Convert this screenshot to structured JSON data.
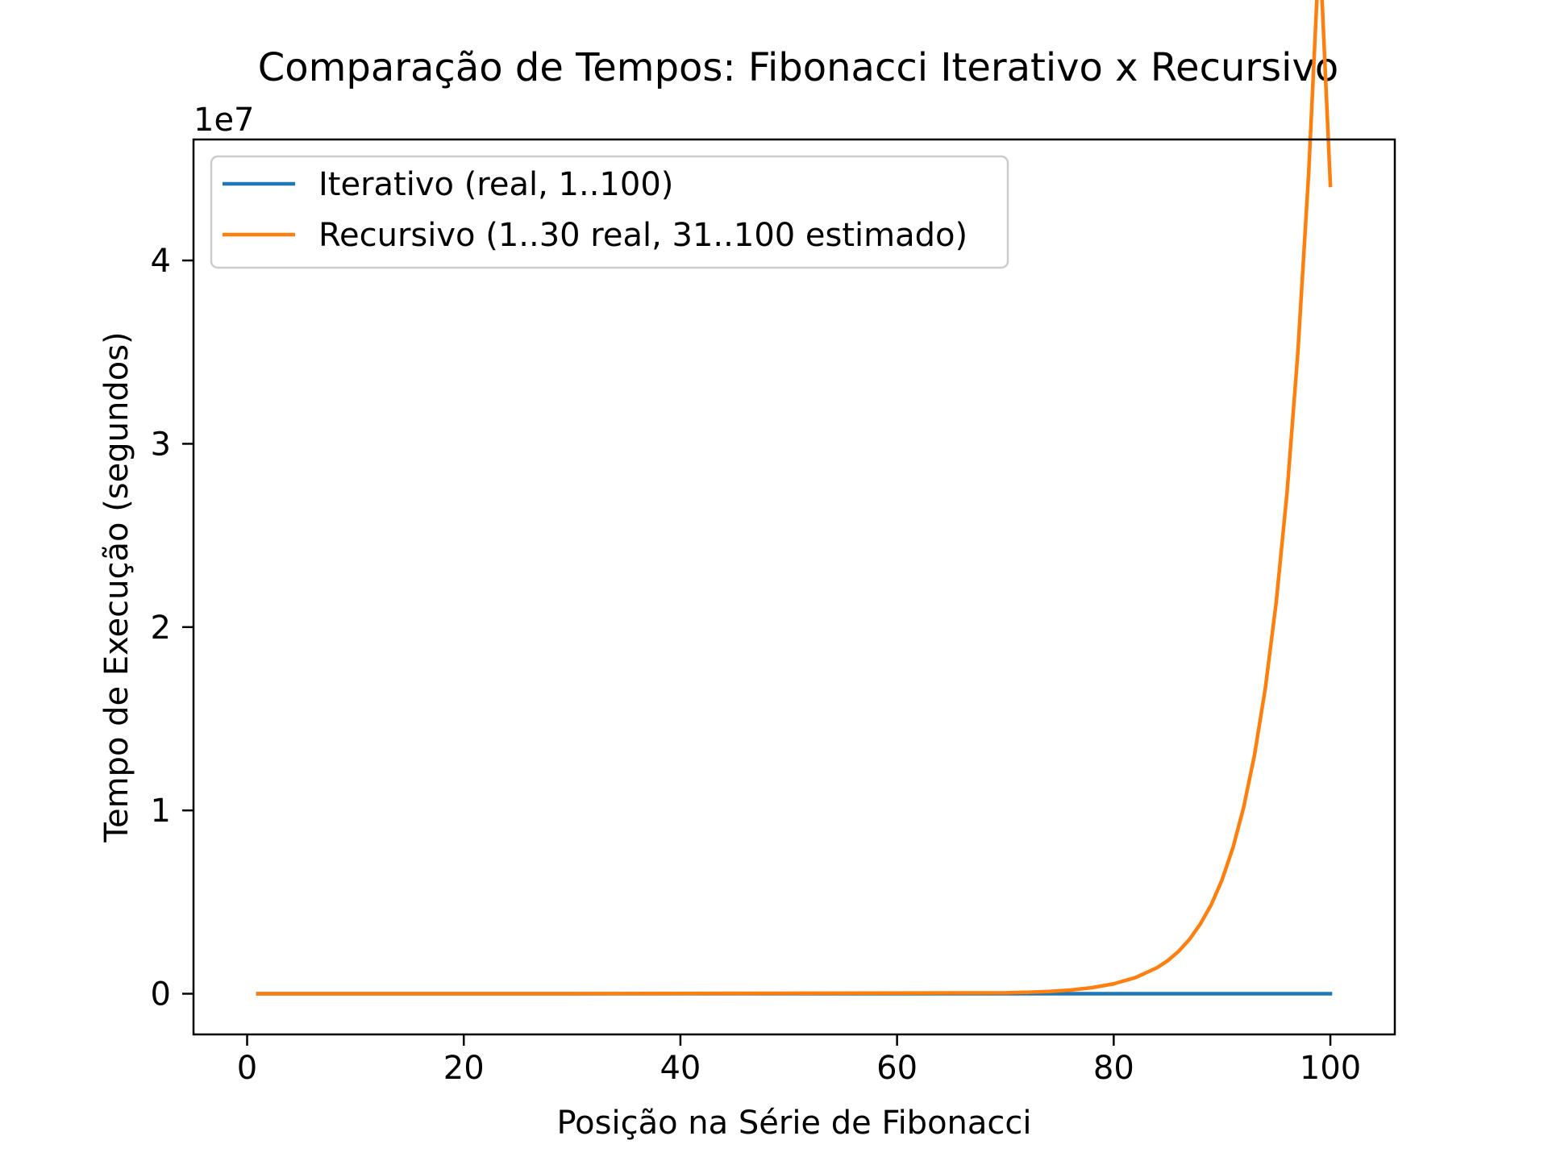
{
  "chart_data": {
    "type": "line",
    "title": "Comparação de Tempos: Fibonacci Iterativo x Recursivo",
    "xlabel": "Posição na Série de Fibonacci",
    "ylabel": "Tempo de Execução (segundos)",
    "y_offset_label": "1e7",
    "xlim": [
      -4.95,
      105.95
    ],
    "ylim": [
      -2220000,
      46600000
    ],
    "x_ticks": [
      0,
      20,
      40,
      60,
      80,
      100
    ],
    "x_tick_labels": [
      "0",
      "20",
      "40",
      "60",
      "80",
      "100"
    ],
    "y_ticks": [
      0,
      10000000,
      20000000,
      30000000,
      40000000
    ],
    "y_tick_labels": [
      "0",
      "1",
      "2",
      "3",
      "4"
    ],
    "grid": false,
    "legend_position": "upper-left",
    "series": [
      {
        "name": "Iterativo (real, 1..100)",
        "color": "#1f77b4",
        "x": [
          1,
          100
        ],
        "y": [
          0,
          0
        ]
      },
      {
        "name": "Recursivo (1..30 real, 31..100 estimado)",
        "color": "#ff7f0e",
        "x": [
          1,
          30,
          70,
          72,
          74,
          76,
          78,
          80,
          82,
          84,
          85,
          86,
          87,
          88,
          89,
          90,
          91,
          92,
          93,
          94,
          95,
          96,
          97,
          98,
          99,
          100
        ],
        "y": [
          0,
          0,
          50000,
          80000,
          120000,
          200000,
          330000,
          540000,
          880000,
          1420000,
          1810000,
          2320000,
          2970000,
          3810000,
          4850000,
          6210000,
          7950000,
          10180000,
          13030000,
          16680000,
          21350000,
          27330000,
          34980000,
          44780000,
          57320000,
          44100000
        ]
      }
    ]
  }
}
